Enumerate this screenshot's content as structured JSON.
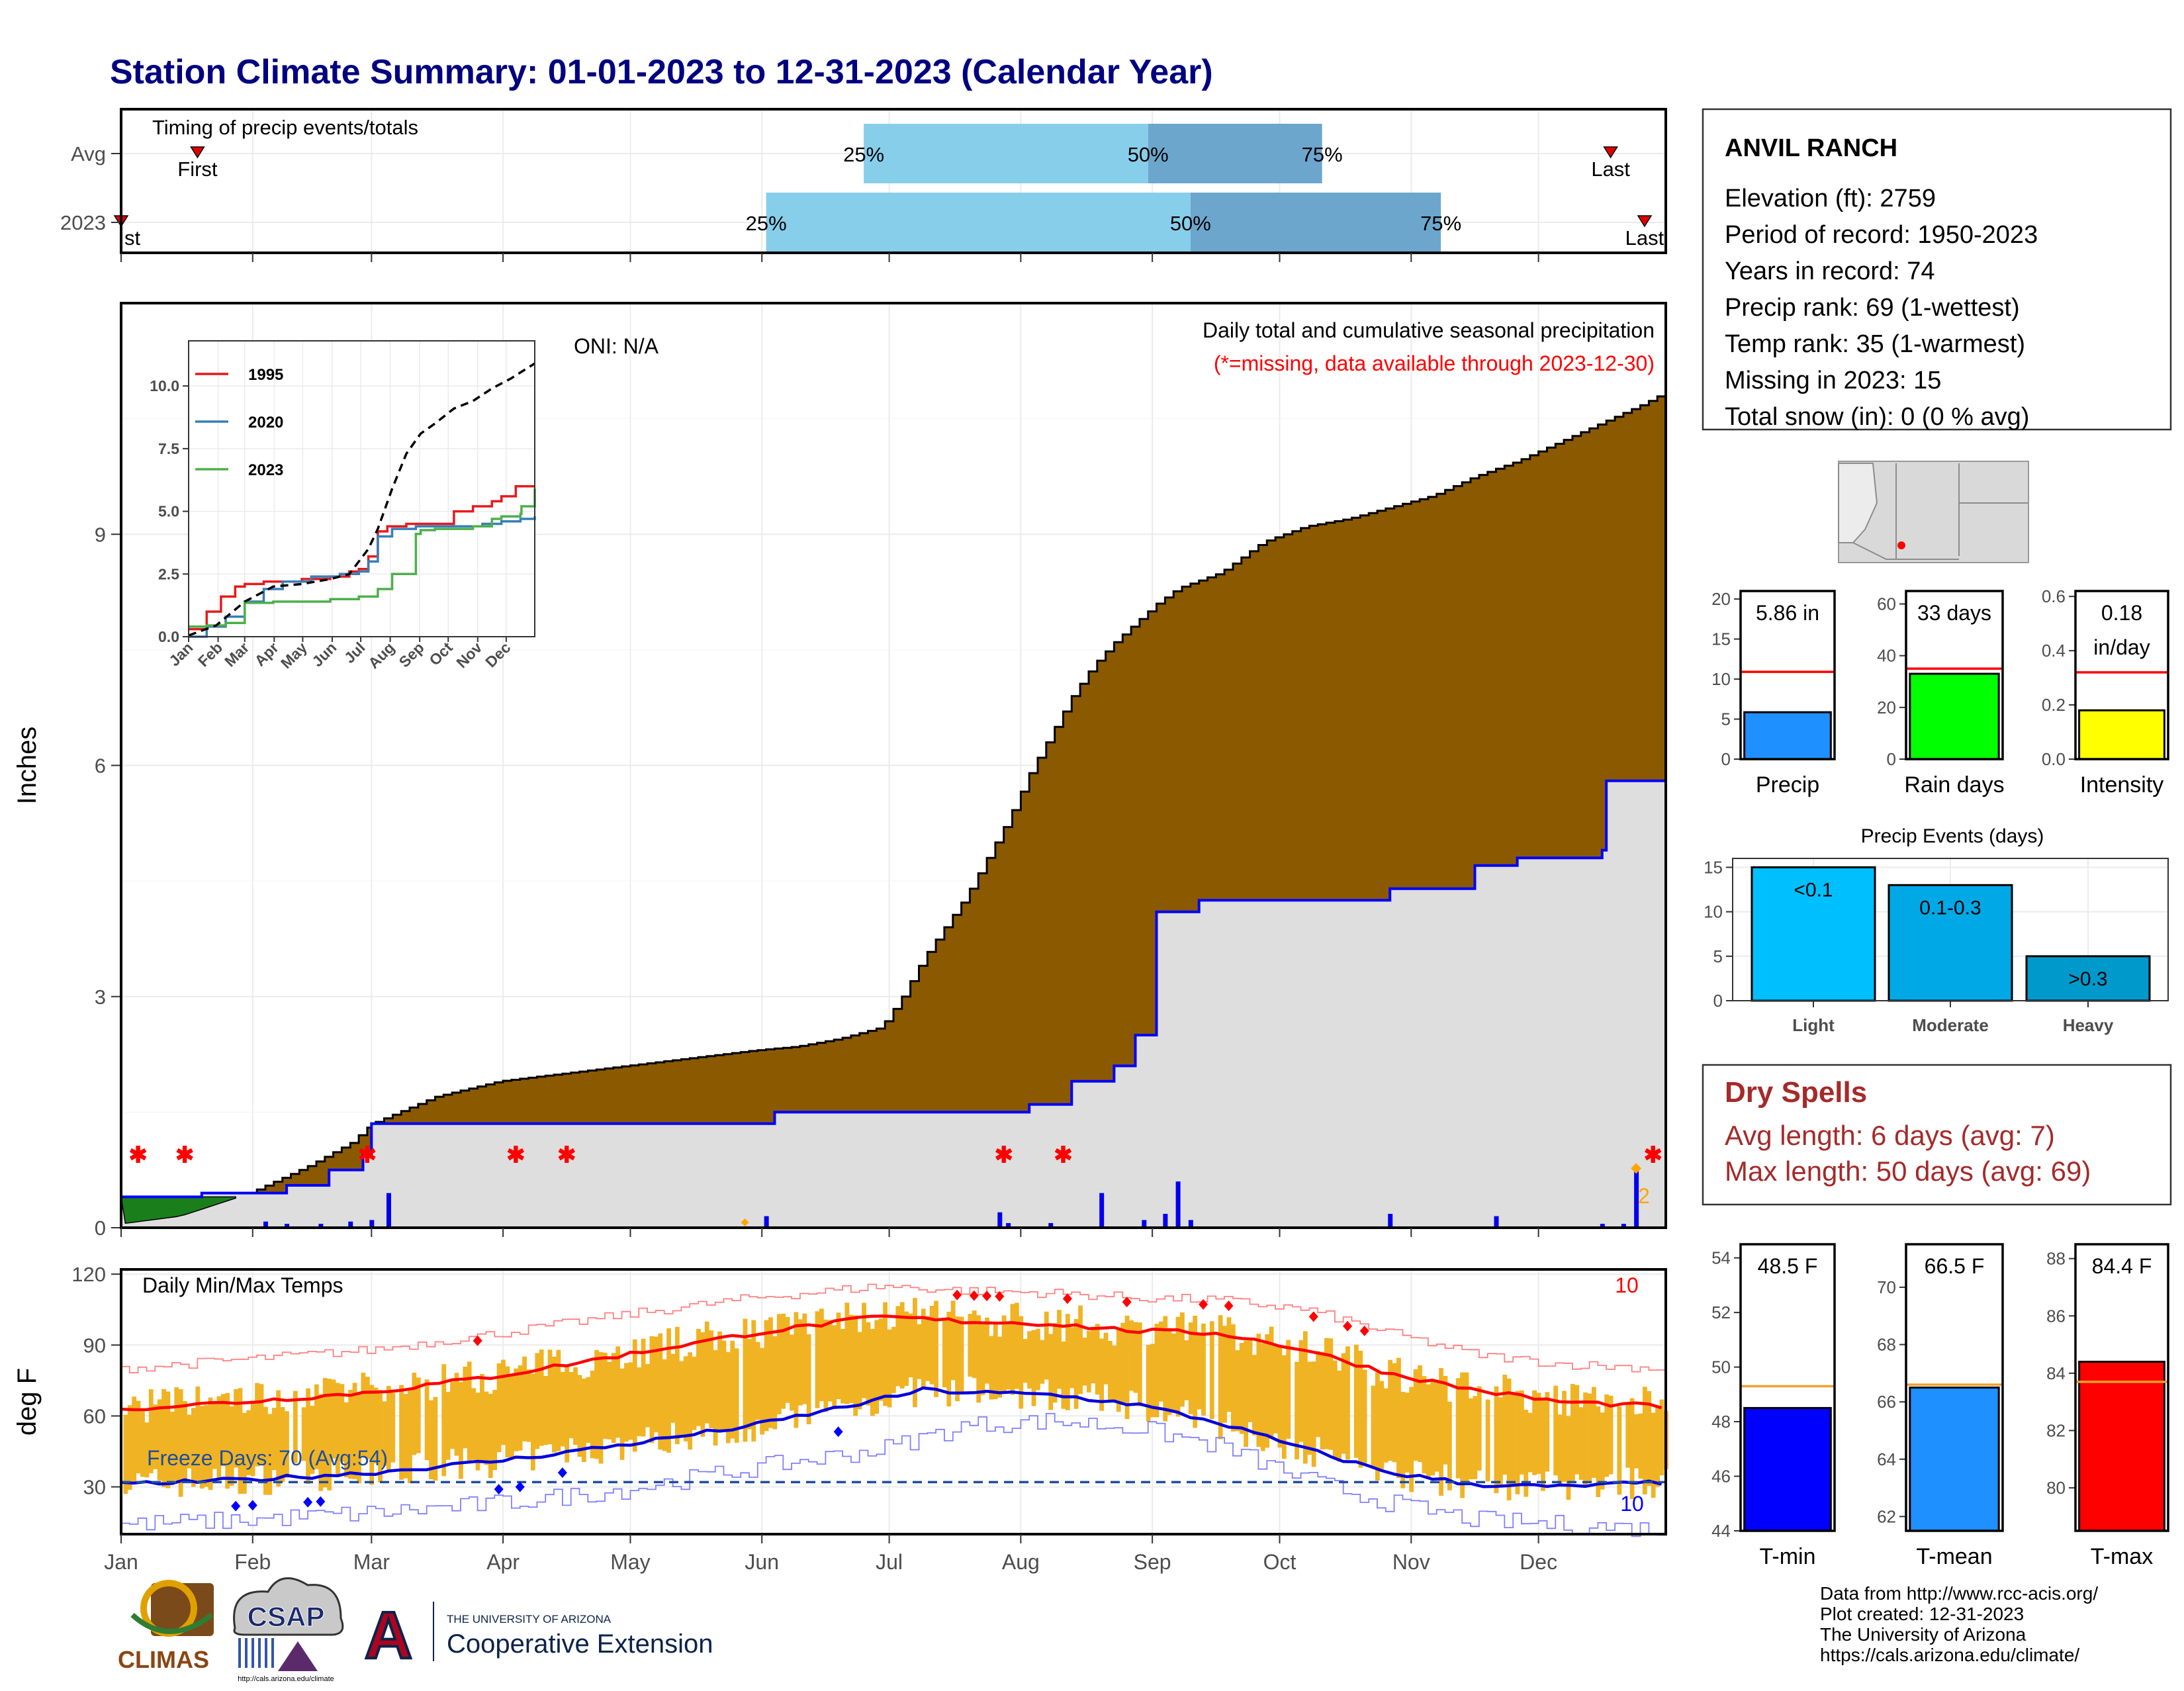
{
  "title": "Station Climate Summary: 01-01-2023 to 12-31-2023 (Calendar Year)",
  "months": [
    "Jan",
    "Feb",
    "Mar",
    "Apr",
    "May",
    "Jun",
    "Jul",
    "Aug",
    "Sep",
    "Oct",
    "Nov",
    "Dec"
  ],
  "timing": {
    "label": "Timing of precip events/totals",
    "rows": [
      "Avg",
      "2023"
    ],
    "avg": {
      "first_day": 19,
      "q25_day": 176,
      "q50_day": 243,
      "q75_day": 284,
      "last_day": 352
    },
    "y2023": {
      "first_day": 1,
      "q25_day": 153,
      "q50_day": 253,
      "q75_day": 312,
      "last_day": 360
    },
    "first_label": "First",
    "last_label": "Last",
    "first_label_2023": "st",
    "q_labels": [
      "25%",
      "50%",
      "75%"
    ]
  },
  "info_box": {
    "station": "ANVIL RANCH",
    "lines": [
      "Elevation (ft): 2759",
      "Period of record: 1950-2023",
      "Years in record: 74",
      "Precip rank: 69 (1-wettest)",
      "Temp rank: 35 (1-warmest)",
      "Missing in 2023: 15",
      "Total snow (in): 0 (0 % avg)"
    ]
  },
  "precip_panel": {
    "ylabel": "Inches",
    "oni": "ONI: N/A",
    "label1": "Daily total and cumulative seasonal precipitation",
    "label2": "(*=missing, data available through 2023-12-30)",
    "yticks": [
      "0",
      "3",
      "6",
      "9"
    ],
    "count_label": "2"
  },
  "inset": {
    "yticks": [
      "0.0",
      "2.5",
      "5.0",
      "7.5",
      "10.0"
    ],
    "legend": [
      "1995",
      "2020",
      "2023"
    ],
    "legend_colors": [
      "#e41a1c",
      "#377eb8",
      "#4daf4a"
    ]
  },
  "temp_panel": {
    "ylabel": "deg F",
    "label": "Daily Min/Max Temps",
    "yticks": [
      "30",
      "60",
      "90",
      "120"
    ],
    "freeze": "Freeze Days: 70 (Avg:54)",
    "count_max": "10",
    "count_min": "10"
  },
  "precip_stats": [
    {
      "name": "Precip",
      "label": "5.86 in",
      "label2": "",
      "value": 5.86,
      "avg": 10.9,
      "ymax": 21,
      "ticks": [
        "0",
        "5",
        "10",
        "15",
        "20"
      ],
      "color": "#1e90ff"
    },
    {
      "name": "Rain days",
      "label": "33 days",
      "label2": "",
      "value": 33,
      "avg": 35,
      "ymax": 65,
      "ticks": [
        "0",
        "20",
        "40",
        "60"
      ],
      "color": "#00ff00"
    },
    {
      "name": "Intensity",
      "label": "0.18",
      "label2": "in/day",
      "value": 0.18,
      "avg": 0.32,
      "ymax": 0.62,
      "ticks": [
        "0.0",
        "0.2",
        "0.4",
        "0.6"
      ],
      "color": "#ffff00"
    }
  ],
  "precip_events": {
    "title": "Precip Events (days)",
    "ticks": [
      "0",
      "5",
      "10",
      "15"
    ],
    "bars": [
      {
        "cat": "Light",
        "label": "<0.1",
        "value": 15,
        "color": "#00bfff"
      },
      {
        "cat": "Moderate",
        "label": "0.1-0.3",
        "value": 13,
        "color": "#00a9e6"
      },
      {
        "cat": "Heavy",
        "label": ">0.3",
        "value": 5,
        "color": "#0099cc"
      }
    ]
  },
  "dry_spells": {
    "title": "Dry Spells",
    "avg": "Avg length: 6 days (avg: 7)",
    "max": "Max length: 50 days (avg: 69)"
  },
  "temp_stats": [
    {
      "name": "T-min",
      "label": "48.5 F",
      "value": 48.5,
      "avg": 49.3,
      "ymin": 44,
      "ymax": 54.5,
      "ticks": [
        "44",
        "46",
        "48",
        "50",
        "52",
        "54"
      ],
      "color": "#0000ff"
    },
    {
      "name": "T-mean",
      "label": "66.5 F",
      "value": 66.5,
      "avg": 66.6,
      "ymin": 61.5,
      "ymax": 71.5,
      "ticks": [
        "62",
        "64",
        "66",
        "68",
        "70"
      ],
      "color": "#1e90ff"
    },
    {
      "name": "T-max",
      "label": "84.4 F",
      "value": 84.4,
      "avg": 83.7,
      "ymin": 78.5,
      "ymax": 88.5,
      "ticks": [
        "80",
        "82",
        "84",
        "86",
        "88"
      ],
      "color": "#ff0000"
    }
  ],
  "footer": [
    "Data from http://www.rcc-acis.org/",
    "Plot created: 12-31-2023",
    "The University of Arizona",
    "https://cals.arizona.edu/climate/"
  ],
  "logos": {
    "climas": "CLIMAS",
    "csap": "CSAP",
    "ua_small": "THE UNIVERSITY OF ARIZONA",
    "ua_big": "Cooperative Extension",
    "ua_letter": "A",
    "csap_url": "http://cals.arizona.edu/climate"
  },
  "chart_data": [
    {
      "type": "area",
      "title": "Daily total and cumulative seasonal precipitation",
      "ylabel": "Inches",
      "x_unit": "day of year",
      "ylim": [
        0,
        12
      ],
      "avg_cumulative": {
        "x": [
          1,
          15,
          30,
          45,
          55,
          60,
          75,
          90,
          105,
          120,
          135,
          150,
          160,
          170,
          180,
          185,
          190,
          195,
          200,
          205,
          210,
          215,
          220,
          225,
          230,
          235,
          240,
          245,
          250,
          255,
          260,
          265,
          270,
          275,
          280,
          290,
          300,
          310,
          320,
          330,
          340,
          350,
          360,
          365
        ],
        "y": [
          0.05,
          0.15,
          0.42,
          0.8,
          1.1,
          1.35,
          1.7,
          1.9,
          2.0,
          2.1,
          2.2,
          2.3,
          2.35,
          2.45,
          2.6,
          3.0,
          3.5,
          3.9,
          4.3,
          4.8,
          5.3,
          5.9,
          6.4,
          6.9,
          7.3,
          7.6,
          7.85,
          8.1,
          8.3,
          8.4,
          8.5,
          8.7,
          8.9,
          9.0,
          9.1,
          9.2,
          9.35,
          9.5,
          9.75,
          9.95,
          10.2,
          10.45,
          10.7,
          10.85
        ]
      },
      "cum_2023": {
        "x": [
          1,
          20,
          40,
          50,
          58,
          60,
          150,
          155,
          210,
          215,
          225,
          235,
          240,
          245,
          255,
          300,
          320,
          330,
          350,
          351,
          365
        ],
        "y": [
          0.4,
          0.45,
          0.55,
          0.75,
          0.95,
          1.35,
          1.35,
          1.5,
          1.5,
          1.6,
          1.9,
          2.1,
          2.5,
          4.1,
          4.25,
          4.4,
          4.7,
          4.8,
          4.9,
          5.8,
          5.86
        ]
      },
      "daily_2023": {
        "x": [
          35,
          40,
          48,
          55,
          60,
          64,
          153,
          208,
          210,
          220,
          232,
          242,
          247,
          250,
          253,
          300,
          325,
          350,
          355,
          358
        ],
        "y": [
          0.08,
          0.05,
          0.05,
          0.08,
          0.1,
          0.45,
          0.15,
          0.2,
          0.06,
          0.06,
          0.45,
          0.1,
          0.18,
          0.6,
          0.1,
          0.18,
          0.15,
          0.05,
          0.05,
          0.75
        ]
      },
      "missing_days": [
        5,
        16,
        59,
        94,
        106,
        209,
        223,
        362
      ]
    },
    {
      "type": "line",
      "title": "Inset cumulative precipitation",
      "series": [
        {
          "name": "1995",
          "x": [
            1,
            20,
            35,
            50,
            60,
            80,
            120,
            150,
            170,
            180,
            190,
            200,
            210,
            230,
            270,
            280,
            300,
            320,
            330,
            345,
            365
          ],
          "y": [
            0.3,
            1.0,
            1.6,
            2.0,
            2.1,
            2.2,
            2.3,
            2.4,
            2.6,
            2.7,
            3.2,
            4.2,
            4.4,
            4.5,
            4.5,
            5.0,
            5.2,
            5.4,
            5.6,
            6.0,
            6.0
          ]
        },
        {
          "name": "2020",
          "x": [
            1,
            20,
            40,
            60,
            80,
            100,
            130,
            160,
            180,
            190,
            200,
            215,
            240,
            280,
            310,
            330,
            350,
            365
          ],
          "y": [
            0.0,
            0.4,
            0.8,
            1.4,
            1.9,
            2.2,
            2.4,
            2.5,
            2.6,
            3.0,
            4.0,
            4.3,
            4.4,
            4.4,
            4.5,
            4.6,
            4.7,
            4.8
          ]
        },
        {
          "name": "2023",
          "x": [
            1,
            20,
            40,
            60,
            90,
            120,
            150,
            180,
            200,
            215,
            240,
            245,
            260,
            300,
            320,
            330,
            350,
            351,
            365
          ],
          "y": [
            0.4,
            0.45,
            0.55,
            1.35,
            1.4,
            1.4,
            1.5,
            1.6,
            1.9,
            2.5,
            4.1,
            4.25,
            4.3,
            4.4,
            4.7,
            4.8,
            4.9,
            5.2,
            5.9
          ]
        },
        {
          "name": "Avg",
          "x": [
            1,
            30,
            60,
            90,
            120,
            150,
            170,
            190,
            200,
            215,
            230,
            245,
            260,
            280,
            300,
            320,
            340,
            365
          ],
          "y": [
            0.05,
            0.45,
            1.4,
            2.0,
            2.1,
            2.3,
            2.5,
            3.5,
            4.3,
            5.9,
            7.3,
            8.1,
            8.5,
            9.1,
            9.4,
            9.9,
            10.3,
            10.9
          ]
        }
      ],
      "ylim": [
        0,
        12
      ]
    },
    {
      "type": "line",
      "title": "Daily Min/Max Temps",
      "ylabel": "deg F",
      "ylim": [
        10,
        122
      ],
      "avg_max": {
        "x": [
          1,
          30,
          60,
          90,
          120,
          150,
          180,
          200,
          220,
          240,
          260,
          280,
          300,
          320,
          340,
          365
        ],
        "y": [
          63,
          66,
          70,
          77,
          86,
          95,
          102,
          100,
          99,
          96,
          95,
          88,
          78,
          71,
          66,
          64
        ]
      },
      "avg_min": {
        "x": [
          1,
          30,
          60,
          90,
          120,
          150,
          180,
          190,
          200,
          220,
          240,
          260,
          280,
          300,
          320,
          340,
          365
        ],
        "y": [
          31,
          33,
          36,
          41,
          48,
          56,
          67,
          71,
          70,
          69,
          65,
          57,
          46,
          36,
          31,
          30,
          32
        ]
      },
      "record_max": {
        "x": [
          1,
          30,
          60,
          90,
          120,
          150,
          180,
          200,
          220,
          240,
          260,
          280,
          300,
          320,
          340,
          365
        ],
        "y": [
          80,
          84,
          88,
          95,
          103,
          110,
          115,
          113,
          112,
          110,
          109,
          105,
          95,
          86,
          82,
          80
        ]
      },
      "record_min": {
        "x": [
          1,
          30,
          60,
          90,
          120,
          150,
          180,
          200,
          220,
          240,
          260,
          280,
          300,
          320,
          340,
          365
        ],
        "y": [
          14,
          16,
          19,
          23,
          29,
          38,
          46,
          56,
          58,
          55,
          47,
          33,
          23,
          16,
          14,
          12
        ]
      },
      "freeze_line": 32,
      "freeze_days": 70,
      "freeze_days_avg": 54
    }
  ]
}
